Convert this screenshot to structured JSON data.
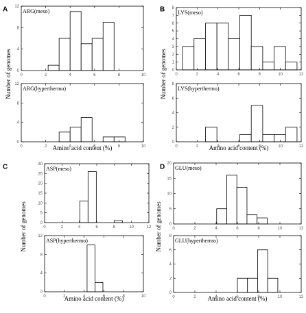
{
  "chart_data": [
    {
      "type": "bar",
      "panel_label": "A",
      "ylabel": "Number of genomes",
      "xlabel": "Amino acid content (%)",
      "subplots": [
        {
          "title": "ARG(meso)",
          "xlim": [
            0,
            10
          ],
          "ylim": [
            0,
            12
          ],
          "xticks": [
            0,
            2,
            4,
            6,
            8,
            10
          ],
          "yticks": [
            0,
            4,
            8,
            12
          ],
          "bin_width": 0.9,
          "x": [
            2.2,
            3.1,
            4.0,
            4.9,
            5.8,
            6.7
          ],
          "values": [
            1,
            6,
            11,
            5,
            6,
            9
          ]
        },
        {
          "title": "ARG(hyperthermo)",
          "xlim": [
            0,
            10
          ],
          "ylim": [
            0,
            12
          ],
          "xticks": [
            0,
            2,
            4,
            6,
            8,
            10
          ],
          "yticks": [
            0,
            4,
            8,
            12
          ],
          "bin_width": 0.9,
          "x": [
            3.1,
            4.0,
            4.9,
            6.7,
            7.6
          ],
          "values": [
            2,
            3,
            5,
            1,
            1
          ]
        }
      ]
    },
    {
      "type": "bar",
      "panel_label": "B",
      "ylabel": "Number of genomes",
      "xlabel": "Amino acid content (%)",
      "subplots": [
        {
          "title": "LYS(meso)",
          "xlim": [
            0,
            12
          ],
          "ylim": [
            0,
            8
          ],
          "xticks": [
            0,
            2,
            4,
            6,
            8,
            10,
            12
          ],
          "yticks": [
            0,
            1,
            2,
            3,
            4,
            5,
            6,
            7,
            8
          ],
          "bin_width": 1.1,
          "x": [
            0.6,
            1.7,
            2.8,
            3.9,
            5.0,
            6.1,
            7.2,
            8.3,
            9.4,
            10.5
          ],
          "values": [
            3,
            4,
            6,
            6,
            4,
            7,
            3,
            1,
            3,
            1
          ]
        },
        {
          "title": "LYS(hyperthermo)",
          "xlim": [
            0,
            12
          ],
          "ylim": [
            0,
            8
          ],
          "xticks": [
            0,
            2,
            4,
            6,
            8,
            10,
            12
          ],
          "yticks": [
            0,
            2,
            4,
            6,
            8
          ],
          "bin_width": 1.1,
          "x": [
            2.8,
            6.1,
            7.2,
            8.3,
            9.4,
            10.5
          ],
          "values": [
            2,
            1,
            5,
            1,
            1,
            2
          ]
        }
      ]
    },
    {
      "type": "bar",
      "panel_label": "C",
      "ylabel": "Number of genomes",
      "xlabel": "Amino acid content (%)",
      "subplots": [
        {
          "title": "ASP(meso)",
          "xlim": [
            0,
            12
          ],
          "ylim": [
            0,
            30
          ],
          "xticks": [
            0,
            2,
            4,
            6,
            8,
            10,
            12
          ],
          "yticks": [
            0,
            5,
            10,
            15,
            20,
            25,
            30
          ],
          "bin_width": 0.95,
          "x": [
            4.05,
            5.0,
            8.0
          ],
          "values": [
            11,
            26,
            1
          ]
        },
        {
          "title": "ASP(hyperthermo)",
          "xlim": [
            0,
            10
          ],
          "ylim": [
            0,
            12
          ],
          "xticks": [
            0,
            2,
            4,
            6,
            8,
            10
          ],
          "yticks": [
            0,
            4,
            8,
            12
          ],
          "bin_width": 0.8,
          "x": [
            4.3,
            5.1
          ],
          "values": [
            10,
            2
          ]
        }
      ]
    },
    {
      "type": "bar",
      "panel_label": "D",
      "ylabel": "Number of genomes",
      "xlabel": "Amino acid content (%)",
      "subplots": [
        {
          "title": "GLU(meso)",
          "xlim": [
            0,
            12
          ],
          "ylim": [
            0,
            20
          ],
          "xticks": [
            0,
            2,
            4,
            6,
            8,
            10,
            12
          ],
          "yticks": [
            0,
            5,
            10,
            15,
            20
          ],
          "bin_width": 0.95,
          "x": [
            4.05,
            5.0,
            5.95,
            6.9,
            7.85
          ],
          "values": [
            5,
            16,
            12,
            3,
            2
          ]
        },
        {
          "title": "GLU(hyperthermo)",
          "xlim": [
            0,
            12
          ],
          "ylim": [
            0,
            8
          ],
          "xticks": [
            0,
            2,
            4,
            6,
            8,
            10,
            12
          ],
          "yticks": [
            0,
            2,
            4,
            6,
            8
          ],
          "bin_width": 0.95,
          "x": [
            6.0,
            6.95,
            7.9,
            8.85
          ],
          "values": [
            2,
            2,
            6,
            2
          ]
        }
      ]
    }
  ]
}
